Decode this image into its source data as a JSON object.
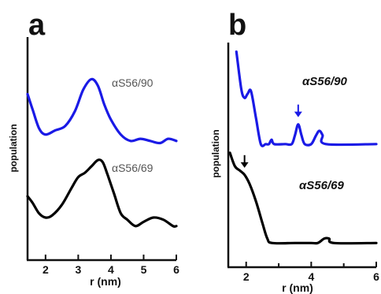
{
  "chart_data": [
    {
      "type": "line",
      "panel": "a",
      "xlabel": "r (nm)",
      "ylabel": "population",
      "xlim": [
        1.45,
        6.0
      ],
      "x_ticks": [
        "2",
        "3",
        "4",
        "5",
        "6"
      ],
      "colors": {
        "αS56/90": "#1a1ae6",
        "αS56/69": "#000000"
      },
      "series": [
        {
          "name": "αS56/90",
          "points": [
            [
              1.45,
              0.78
            ],
            [
              1.6,
              0.71
            ],
            [
              1.8,
              0.62
            ],
            [
              2.0,
              0.59
            ],
            [
              2.3,
              0.61
            ],
            [
              2.6,
              0.63
            ],
            [
              2.9,
              0.7
            ],
            [
              3.15,
              0.8
            ],
            [
              3.4,
              0.85
            ],
            [
              3.6,
              0.82
            ],
            [
              3.8,
              0.73
            ],
            [
              4.0,
              0.66
            ],
            [
              4.3,
              0.59
            ],
            [
              4.6,
              0.56
            ],
            [
              4.9,
              0.57
            ],
            [
              5.2,
              0.56
            ],
            [
              5.5,
              0.55
            ],
            [
              5.75,
              0.57
            ],
            [
              6.0,
              0.56
            ]
          ]
        },
        {
          "name": "αS56/69",
          "points": [
            [
              1.45,
              0.3
            ],
            [
              1.6,
              0.27
            ],
            [
              1.8,
              0.22
            ],
            [
              2.0,
              0.2
            ],
            [
              2.2,
              0.21
            ],
            [
              2.5,
              0.26
            ],
            [
              2.8,
              0.34
            ],
            [
              3.0,
              0.39
            ],
            [
              3.2,
              0.41
            ],
            [
              3.4,
              0.44
            ],
            [
              3.6,
              0.47
            ],
            [
              3.75,
              0.46
            ],
            [
              3.9,
              0.4
            ],
            [
              4.1,
              0.31
            ],
            [
              4.3,
              0.22
            ],
            [
              4.5,
              0.19
            ],
            [
              4.75,
              0.16
            ],
            [
              5.0,
              0.18
            ],
            [
              5.3,
              0.2
            ],
            [
              5.6,
              0.19
            ],
            [
              5.9,
              0.16
            ],
            [
              6.0,
              0.16
            ]
          ]
        }
      ],
      "series_labels": [
        "αS56/90",
        "αS56/69"
      ]
    },
    {
      "type": "line",
      "panel": "b",
      "xlabel": "r (nm)",
      "ylabel": "population",
      "xlim": [
        1.45,
        6.0
      ],
      "x_ticks": [
        "2",
        "4",
        "6"
      ],
      "minor_x_ticks": [
        3,
        5
      ],
      "colors": {
        "αS56/90": "#1a1ae6",
        "αS56/69": "#000000"
      },
      "series": [
        {
          "name": "αS56/90",
          "points": [
            [
              1.7,
              0.98
            ],
            [
              1.85,
              0.81
            ],
            [
              1.95,
              0.77
            ],
            [
              2.05,
              0.79
            ],
            [
              2.15,
              0.8
            ],
            [
              2.3,
              0.68
            ],
            [
              2.45,
              0.56
            ],
            [
              2.6,
              0.56
            ],
            [
              2.7,
              0.56
            ],
            [
              2.78,
              0.58
            ],
            [
              2.86,
              0.56
            ],
            [
              3.2,
              0.56
            ],
            [
              3.4,
              0.56
            ],
            [
              3.5,
              0.6
            ],
            [
              3.6,
              0.65
            ],
            [
              3.7,
              0.6
            ],
            [
              3.8,
              0.56
            ],
            [
              4.0,
              0.56
            ],
            [
              4.15,
              0.6
            ],
            [
              4.25,
              0.62
            ],
            [
              4.35,
              0.6
            ],
            [
              4.45,
              0.56
            ],
            [
              6.0,
              0.56
            ]
          ]
        },
        {
          "name": "αS56/69",
          "points": [
            [
              1.5,
              0.52
            ],
            [
              1.65,
              0.46
            ],
            [
              1.8,
              0.44
            ],
            [
              1.95,
              0.42
            ],
            [
              2.1,
              0.38
            ],
            [
              2.3,
              0.3
            ],
            [
              2.5,
              0.2
            ],
            [
              2.65,
              0.13
            ],
            [
              2.8,
              0.11
            ],
            [
              3.5,
              0.11
            ],
            [
              4.0,
              0.11
            ],
            [
              4.2,
              0.11
            ],
            [
              4.4,
              0.13
            ],
            [
              4.55,
              0.13
            ],
            [
              4.7,
              0.11
            ],
            [
              6.0,
              0.11
            ]
          ]
        }
      ],
      "series_labels": [
        "αS56/90",
        "αS56/69"
      ],
      "annotations": [
        {
          "type": "arrow",
          "series": "αS56/90",
          "x": 3.6,
          "color": "#1a1ae6"
        },
        {
          "type": "arrow",
          "series": "αS56/69",
          "x": 1.95,
          "color": "#000000"
        }
      ]
    }
  ],
  "panel_letters": [
    "a",
    "b"
  ]
}
